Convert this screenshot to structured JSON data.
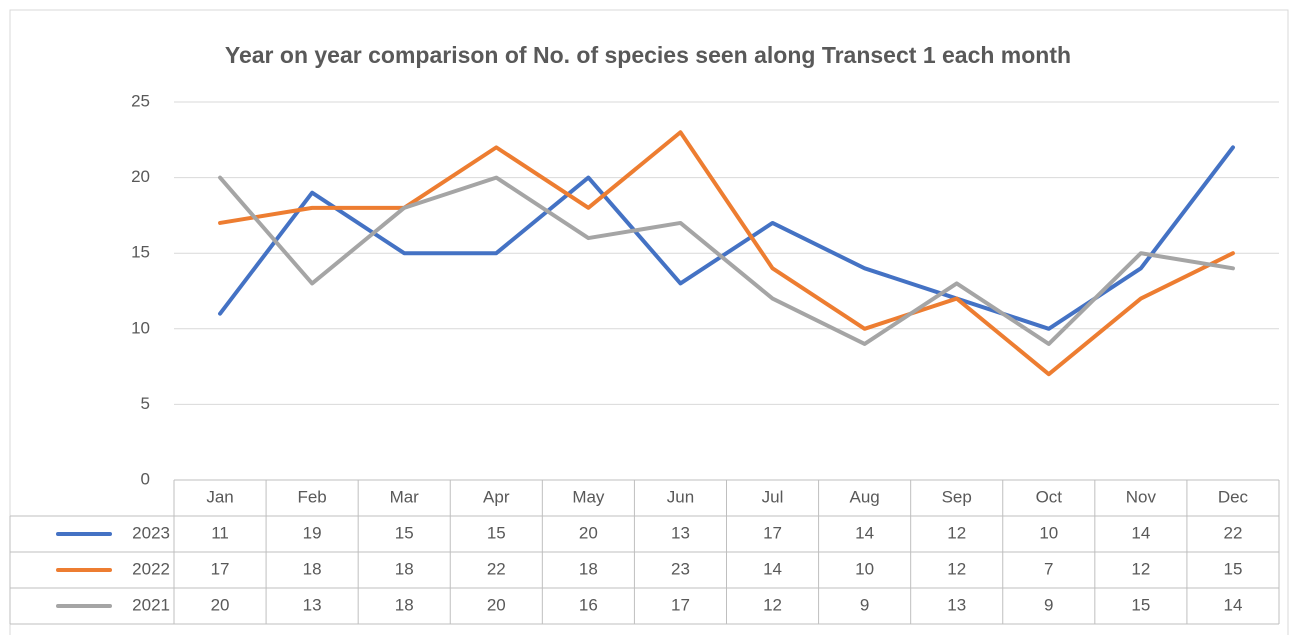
{
  "chart_data": {
    "type": "line",
    "title": "Year on year comparison of No. of species seen along Transect 1 each month",
    "categories": [
      "Jan",
      "Feb",
      "Mar",
      "Apr",
      "May",
      "Jun",
      "Jul",
      "Aug",
      "Sep",
      "Oct",
      "Nov",
      "Dec"
    ],
    "series": [
      {
        "name": "2023",
        "color": "#4472c4",
        "values": [
          11,
          19,
          15,
          15,
          20,
          13,
          17,
          14,
          12,
          10,
          14,
          22
        ]
      },
      {
        "name": "2022",
        "color": "#ed7d31",
        "values": [
          17,
          18,
          18,
          22,
          18,
          23,
          14,
          10,
          12,
          7,
          12,
          15
        ]
      },
      {
        "name": "2021",
        "color": "#a5a5a5",
        "values": [
          20,
          13,
          18,
          20,
          16,
          17,
          12,
          9,
          13,
          9,
          15,
          14
        ]
      }
    ],
    "ylim": [
      0,
      25
    ],
    "yticks": [
      0,
      5,
      10,
      15,
      20,
      25
    ],
    "grid": true,
    "data_table": true
  }
}
